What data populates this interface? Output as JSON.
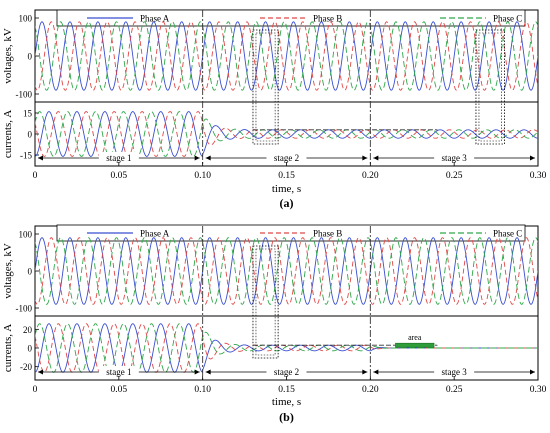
{
  "chart_data": [
    {
      "type": "line",
      "caption": "(a)",
      "xlabel": "time, s",
      "xlim": [
        0,
        0.3
      ],
      "x_ticks": [
        "0",
        "0.05",
        "0.10",
        "0.15",
        "0.20",
        "0.25",
        "0.30"
      ],
      "legend": [
        "Phase A",
        "Phase B",
        "Phase C"
      ],
      "legend_position": "top",
      "colors": {
        "Phase A": "#3a4fd0",
        "Phase B": "#e04848",
        "Phase C": "#2fa84a"
      },
      "panels": [
        {
          "name": "voltages",
          "ylabel": "voltages, kV",
          "ylim": [
            -100,
            100
          ],
          "y_ticks": [
            "100",
            "0",
            "-100"
          ],
          "series": [
            {
              "name": "Phase A",
              "model": "sine",
              "amplitude": 90,
              "frequency_hz": 60,
              "phase_deg": 0
            },
            {
              "name": "Phase B",
              "model": "sine",
              "amplitude": 90,
              "frequency_hz": 60,
              "phase_deg": -120
            },
            {
              "name": "Phase C",
              "model": "sine",
              "amplitude": 90,
              "frequency_hz": 60,
              "phase_deg": 120
            }
          ]
        },
        {
          "name": "currents",
          "ylabel": "currents, A",
          "ylim": [
            -20,
            20
          ],
          "y_ticks": [
            "15",
            "0",
            "-15"
          ],
          "events": {
            "fault_start": 0.1,
            "stage_3_start": 0.2
          },
          "series": [
            {
              "name": "Phase A",
              "stage1_amplitude": 16,
              "stage2_amplitude": 3,
              "stage3_amplitude": 3,
              "frequency_hz": 60,
              "phase_deg": -90
            },
            {
              "name": "Phase B",
              "stage1_amplitude": 16,
              "stage2_amplitude": 3,
              "stage3_amplitude": 3,
              "frequency_hz": 60,
              "phase_deg": 150
            },
            {
              "name": "Phase C",
              "stage1_amplitude": 16,
              "stage2_amplitude": 3,
              "stage3_amplitude": 3,
              "frequency_hz": 60,
              "phase_deg": 30
            }
          ]
        }
      ],
      "stages": [
        {
          "label": "stage 1",
          "x_start": 0.0,
          "x_end": 0.1
        },
        {
          "label": "stage 2",
          "x_start": 0.1,
          "x_end": 0.2
        },
        {
          "label": "stage 3",
          "x_start": 0.2,
          "x_end": 0.3
        }
      ],
      "highlight_windows": [
        [
          0.13,
          0.145
        ],
        [
          0.263,
          0.28
        ]
      ],
      "reference_segments": [
        {
          "x_start": 0.13,
          "x_end": 0.24,
          "y": 3
        }
      ],
      "vertical_markers": [
        0.1,
        0.2
      ]
    },
    {
      "type": "line",
      "caption": "(b)",
      "xlabel": "time, s",
      "xlim": [
        0,
        0.3
      ],
      "x_ticks": [
        "0",
        "0.05",
        "0.10",
        "0.15",
        "0.20",
        "0.25",
        "0.30"
      ],
      "legend": [
        "Phase A",
        "Phase B",
        "Phase C"
      ],
      "legend_position": "top",
      "colors": {
        "Phase A": "#3a4fd0",
        "Phase B": "#e04848",
        "Phase C": "#2fa84a"
      },
      "panels": [
        {
          "name": "voltages",
          "ylabel": "voltages, kV",
          "ylim": [
            -100,
            100
          ],
          "y_ticks": [
            "100",
            "0",
            "-100"
          ],
          "series": [
            {
              "name": "Phase A",
              "model": "sine",
              "amplitude": 90,
              "frequency_hz": 60,
              "phase_deg": 0
            },
            {
              "name": "Phase B",
              "model": "sine",
              "amplitude": 90,
              "frequency_hz": 60,
              "phase_deg": -120
            },
            {
              "name": "Phase C",
              "model": "sine",
              "amplitude": 90,
              "frequency_hz": 60,
              "phase_deg": 120
            }
          ]
        },
        {
          "name": "currents",
          "ylabel": "currents, A",
          "ylim": [
            -30,
            30
          ],
          "y_ticks": [
            "20",
            "0",
            "-20"
          ],
          "events": {
            "fault_start": 0.1,
            "stage_3_start": 0.2
          },
          "series": [
            {
              "name": "Phase A",
              "stage1_amplitude": 26,
              "stage2_amplitude": 3,
              "stage3_amplitude": 0,
              "frequency_hz": 60,
              "phase_deg": -90
            },
            {
              "name": "Phase B",
              "stage1_amplitude": 26,
              "stage2_amplitude": 3,
              "stage3_amplitude": 0,
              "frequency_hz": 60,
              "phase_deg": 150
            },
            {
              "name": "Phase C",
              "stage1_amplitude": 26,
              "stage2_amplitude": 3,
              "stage3_amplitude": 0,
              "frequency_hz": 60,
              "phase_deg": 30
            }
          ]
        }
      ],
      "stages": [
        {
          "label": "stage 1",
          "x_start": 0.0,
          "x_end": 0.1
        },
        {
          "label": "stage 2",
          "x_start": 0.1,
          "x_end": 0.2
        },
        {
          "label": "stage 3",
          "x_start": 0.2,
          "x_end": 0.3
        }
      ],
      "highlight_windows": [
        [
          0.13,
          0.145
        ]
      ],
      "reference_segments": [
        {
          "x_start": 0.13,
          "x_end": 0.24,
          "y": 3
        }
      ],
      "area_annotation": {
        "label": "area",
        "x_start": 0.215,
        "x_end": 0.238,
        "y": 3
      },
      "vertical_markers": [
        0.1,
        0.2
      ]
    }
  ]
}
